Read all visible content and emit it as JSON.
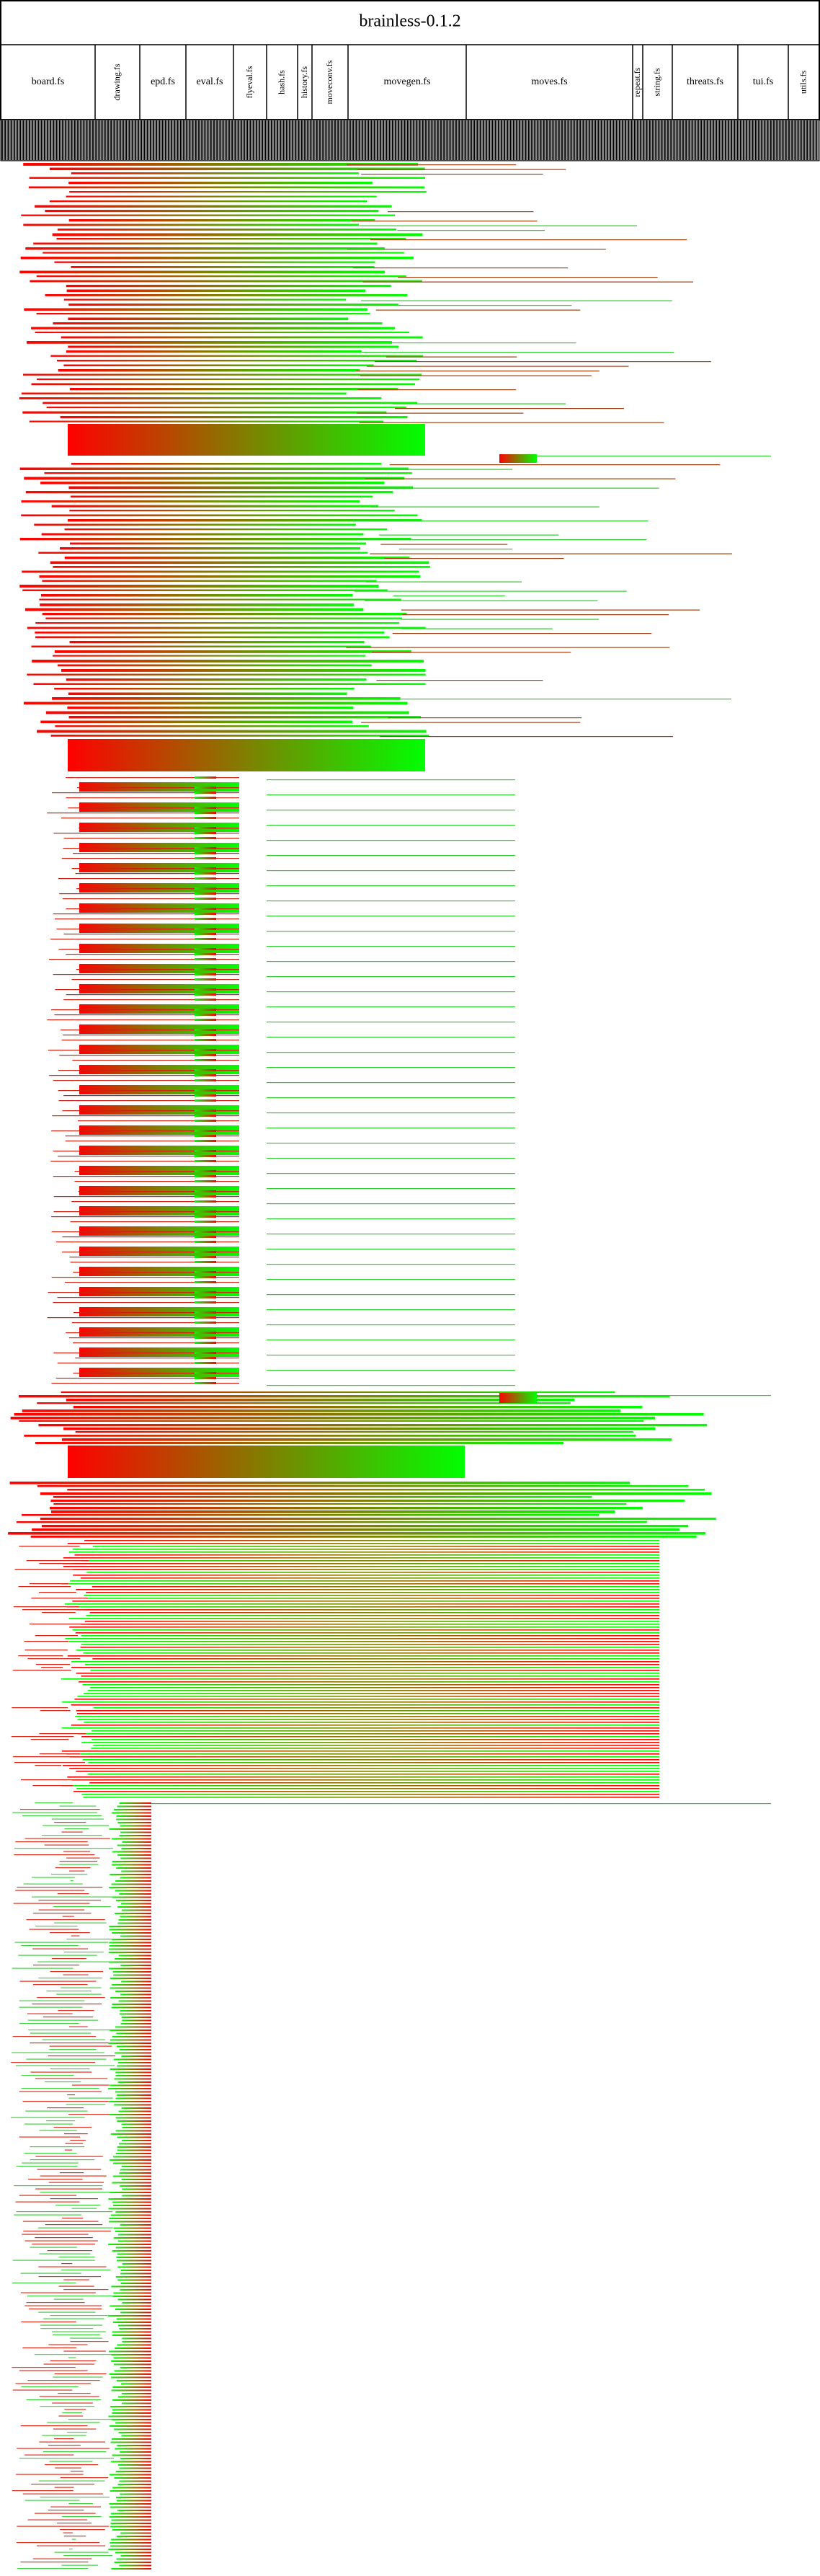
{
  "header": {
    "title": "brainless-0.1.2"
  },
  "columns": [
    "board.fs",
    "drawing.fs",
    "epd.fs",
    "eval.fs",
    "flyeval.fs",
    "hash.fs",
    "history.fs",
    "moveconv.fs",
    "movegen.fs",
    "moves.fs",
    "repeat.fs",
    "string.fs",
    "threats.fs",
    "tui.fs",
    "utils.fs"
  ]
}
